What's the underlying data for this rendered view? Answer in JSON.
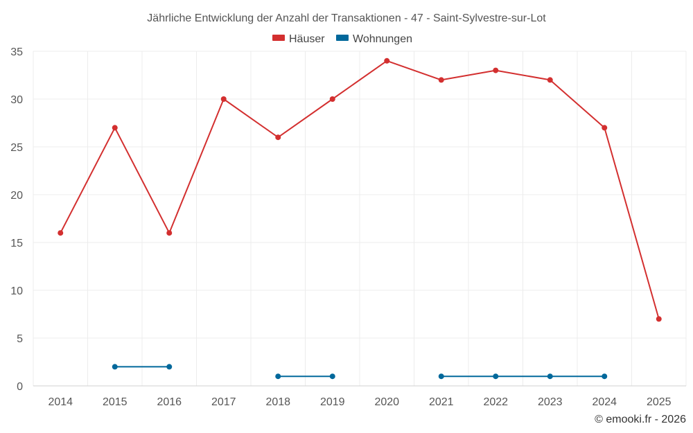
{
  "chart_data": {
    "type": "line",
    "title": "Jährliche Entwicklung der Anzahl der Transaktionen - 47 - Saint-Sylvestre-sur-Lot",
    "xlabel": "",
    "ylabel": "",
    "categories": [
      "2014",
      "2015",
      "2016",
      "2017",
      "2018",
      "2019",
      "2020",
      "2021",
      "2022",
      "2023",
      "2024",
      "2025"
    ],
    "ylim": [
      0,
      35
    ],
    "yticks": [
      0,
      5,
      10,
      15,
      20,
      25,
      30,
      35
    ],
    "grid": true,
    "legend_position": "top-center",
    "series": [
      {
        "name": "Häuser",
        "color": "#d32f2f",
        "values": [
          16,
          27,
          16,
          30,
          26,
          30,
          34,
          32,
          33,
          32,
          27,
          7
        ]
      },
      {
        "name": "Wohnungen",
        "color": "#01689b",
        "values": [
          null,
          2,
          2,
          null,
          1,
          1,
          null,
          1,
          1,
          1,
          1,
          null
        ]
      }
    ],
    "credit": "© emooki.fr - 2026"
  }
}
